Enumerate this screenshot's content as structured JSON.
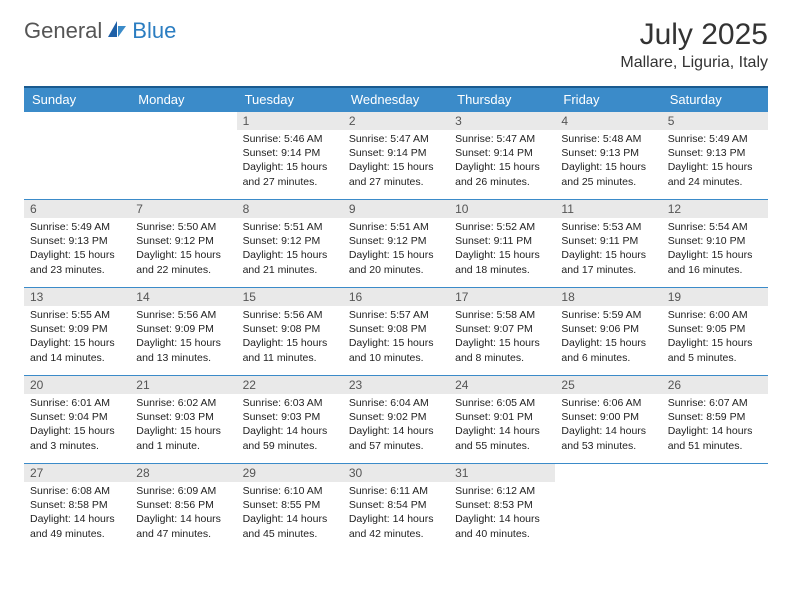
{
  "logo": {
    "part1": "General",
    "part2": "Blue"
  },
  "title": "July 2025",
  "location": "Mallare, Liguria, Italy",
  "colors": {
    "header_bg": "#3b8bc9",
    "header_border_top": "#1a5a8f",
    "daynum_bg": "#e9e9e9",
    "blue_brand": "#2b7dc1",
    "text_gray": "#555555"
  },
  "day_headers": [
    "Sunday",
    "Monday",
    "Tuesday",
    "Wednesday",
    "Thursday",
    "Friday",
    "Saturday"
  ],
  "weeks": [
    [
      null,
      null,
      {
        "n": "1",
        "sunrise": "5:46 AM",
        "sunset": "9:14 PM",
        "daylight": "15 hours and 27 minutes."
      },
      {
        "n": "2",
        "sunrise": "5:47 AM",
        "sunset": "9:14 PM",
        "daylight": "15 hours and 27 minutes."
      },
      {
        "n": "3",
        "sunrise": "5:47 AM",
        "sunset": "9:14 PM",
        "daylight": "15 hours and 26 minutes."
      },
      {
        "n": "4",
        "sunrise": "5:48 AM",
        "sunset": "9:13 PM",
        "daylight": "15 hours and 25 minutes."
      },
      {
        "n": "5",
        "sunrise": "5:49 AM",
        "sunset": "9:13 PM",
        "daylight": "15 hours and 24 minutes."
      }
    ],
    [
      {
        "n": "6",
        "sunrise": "5:49 AM",
        "sunset": "9:13 PM",
        "daylight": "15 hours and 23 minutes."
      },
      {
        "n": "7",
        "sunrise": "5:50 AM",
        "sunset": "9:12 PM",
        "daylight": "15 hours and 22 minutes."
      },
      {
        "n": "8",
        "sunrise": "5:51 AM",
        "sunset": "9:12 PM",
        "daylight": "15 hours and 21 minutes."
      },
      {
        "n": "9",
        "sunrise": "5:51 AM",
        "sunset": "9:12 PM",
        "daylight": "15 hours and 20 minutes."
      },
      {
        "n": "10",
        "sunrise": "5:52 AM",
        "sunset": "9:11 PM",
        "daylight": "15 hours and 18 minutes."
      },
      {
        "n": "11",
        "sunrise": "5:53 AM",
        "sunset": "9:11 PM",
        "daylight": "15 hours and 17 minutes."
      },
      {
        "n": "12",
        "sunrise": "5:54 AM",
        "sunset": "9:10 PM",
        "daylight": "15 hours and 16 minutes."
      }
    ],
    [
      {
        "n": "13",
        "sunrise": "5:55 AM",
        "sunset": "9:09 PM",
        "daylight": "15 hours and 14 minutes."
      },
      {
        "n": "14",
        "sunrise": "5:56 AM",
        "sunset": "9:09 PM",
        "daylight": "15 hours and 13 minutes."
      },
      {
        "n": "15",
        "sunrise": "5:56 AM",
        "sunset": "9:08 PM",
        "daylight": "15 hours and 11 minutes."
      },
      {
        "n": "16",
        "sunrise": "5:57 AM",
        "sunset": "9:08 PM",
        "daylight": "15 hours and 10 minutes."
      },
      {
        "n": "17",
        "sunrise": "5:58 AM",
        "sunset": "9:07 PM",
        "daylight": "15 hours and 8 minutes."
      },
      {
        "n": "18",
        "sunrise": "5:59 AM",
        "sunset": "9:06 PM",
        "daylight": "15 hours and 6 minutes."
      },
      {
        "n": "19",
        "sunrise": "6:00 AM",
        "sunset": "9:05 PM",
        "daylight": "15 hours and 5 minutes."
      }
    ],
    [
      {
        "n": "20",
        "sunrise": "6:01 AM",
        "sunset": "9:04 PM",
        "daylight": "15 hours and 3 minutes."
      },
      {
        "n": "21",
        "sunrise": "6:02 AM",
        "sunset": "9:03 PM",
        "daylight": "15 hours and 1 minute."
      },
      {
        "n": "22",
        "sunrise": "6:03 AM",
        "sunset": "9:03 PM",
        "daylight": "14 hours and 59 minutes."
      },
      {
        "n": "23",
        "sunrise": "6:04 AM",
        "sunset": "9:02 PM",
        "daylight": "14 hours and 57 minutes."
      },
      {
        "n": "24",
        "sunrise": "6:05 AM",
        "sunset": "9:01 PM",
        "daylight": "14 hours and 55 minutes."
      },
      {
        "n": "25",
        "sunrise": "6:06 AM",
        "sunset": "9:00 PM",
        "daylight": "14 hours and 53 minutes."
      },
      {
        "n": "26",
        "sunrise": "6:07 AM",
        "sunset": "8:59 PM",
        "daylight": "14 hours and 51 minutes."
      }
    ],
    [
      {
        "n": "27",
        "sunrise": "6:08 AM",
        "sunset": "8:58 PM",
        "daylight": "14 hours and 49 minutes."
      },
      {
        "n": "28",
        "sunrise": "6:09 AM",
        "sunset": "8:56 PM",
        "daylight": "14 hours and 47 minutes."
      },
      {
        "n": "29",
        "sunrise": "6:10 AM",
        "sunset": "8:55 PM",
        "daylight": "14 hours and 45 minutes."
      },
      {
        "n": "30",
        "sunrise": "6:11 AM",
        "sunset": "8:54 PM",
        "daylight": "14 hours and 42 minutes."
      },
      {
        "n": "31",
        "sunrise": "6:12 AM",
        "sunset": "8:53 PM",
        "daylight": "14 hours and 40 minutes."
      },
      null,
      null
    ]
  ],
  "labels": {
    "sunrise": "Sunrise:",
    "sunset": "Sunset:",
    "daylight": "Daylight:"
  }
}
